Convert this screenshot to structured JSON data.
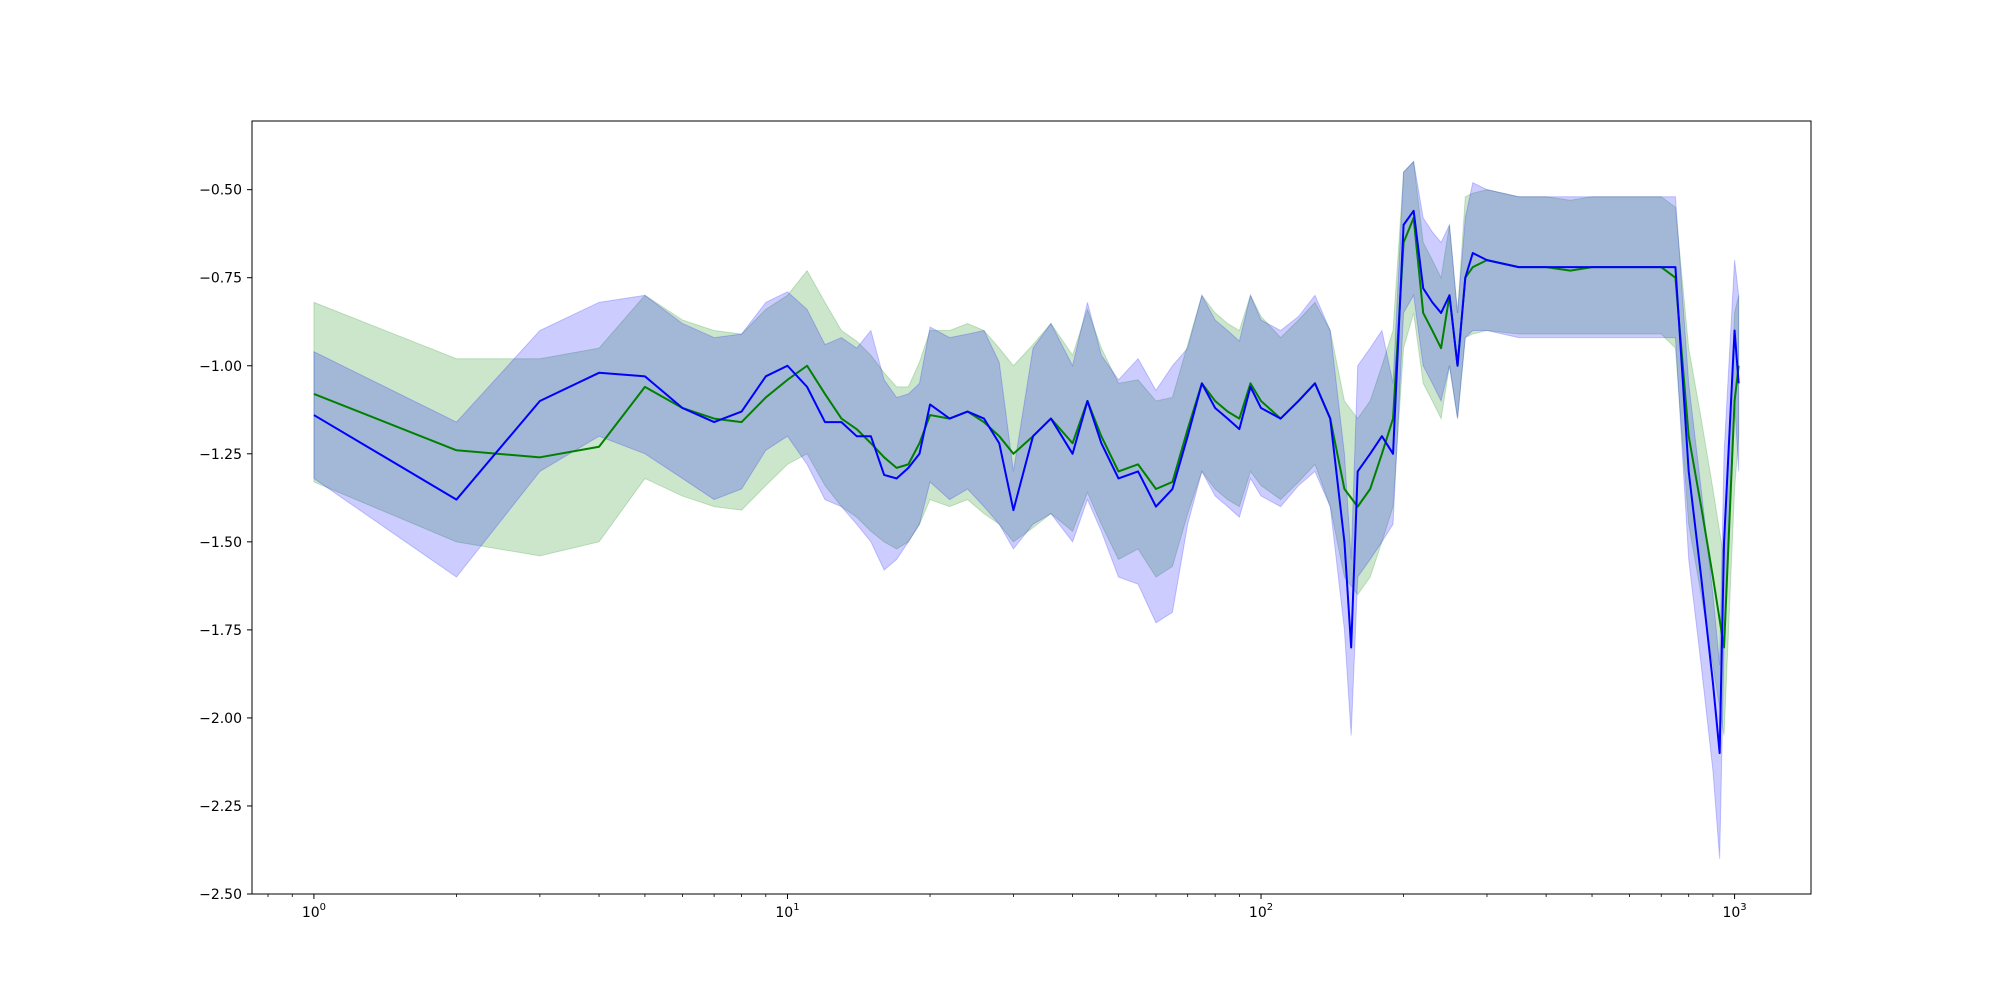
{
  "chart_data": {
    "type": "line",
    "xscale": "log",
    "xlim": [
      0.74,
      1450
    ],
    "ylim": [
      -2.5,
      -0.305
    ],
    "y_ticks": [
      -0.5,
      -0.75,
      -1.0,
      -1.25,
      -1.5,
      -1.75,
      -2.0,
      -2.25,
      -2.5
    ],
    "y_tick_labels": [
      "−0.50",
      "−0.75",
      "−1.00",
      "−1.25",
      "−1.50",
      "−1.75",
      "−2.00",
      "−2.25",
      "−2.50"
    ],
    "x_ticks": [
      1,
      10,
      100,
      1000
    ],
    "x_tick_labels": [
      {
        "base": "10",
        "exp": "0"
      },
      {
        "base": "10",
        "exp": "1"
      },
      {
        "base": "10",
        "exp": "2"
      },
      {
        "base": "10",
        "exp": "3"
      }
    ],
    "grid": false,
    "colors": {
      "green_line": "#008000",
      "green_band": "#008000",
      "blue_line": "#0000ff",
      "blue_band": "#0000ff"
    },
    "series": [
      {
        "color": "green",
        "x": [
          1,
          2,
          3,
          4,
          5,
          6,
          7,
          8,
          9,
          10,
          11,
          12,
          13,
          14,
          15,
          16,
          17,
          18,
          19,
          20,
          22,
          24,
          26,
          28,
          30,
          33,
          36,
          40,
          43,
          46,
          50,
          55,
          60,
          65,
          70,
          75,
          80,
          85,
          90,
          95,
          100,
          110,
          120,
          130,
          140,
          150,
          160,
          170,
          180,
          190,
          200,
          210,
          220,
          230,
          240,
          250,
          260,
          270,
          280,
          300,
          350,
          400,
          450,
          500,
          550,
          600,
          650,
          700,
          750,
          800,
          850,
          900,
          950,
          1000,
          1020
        ],
        "y": [
          -1.08,
          -1.24,
          -1.26,
          -1.23,
          -1.06,
          -1.12,
          -1.15,
          -1.16,
          -1.09,
          -1.04,
          -1.0,
          -1.08,
          -1.15,
          -1.18,
          -1.22,
          -1.26,
          -1.29,
          -1.28,
          -1.22,
          -1.14,
          -1.15,
          -1.13,
          -1.16,
          -1.2,
          -1.25,
          -1.2,
          -1.15,
          -1.22,
          -1.1,
          -1.2,
          -1.3,
          -1.28,
          -1.35,
          -1.33,
          -1.18,
          -1.05,
          -1.1,
          -1.13,
          -1.15,
          -1.05,
          -1.1,
          -1.15,
          -1.1,
          -1.05,
          -1.15,
          -1.35,
          -1.4,
          -1.35,
          -1.25,
          -1.15,
          -0.65,
          -0.58,
          -0.85,
          -0.9,
          -0.95,
          -0.8,
          -1.0,
          -0.75,
          -0.72,
          -0.7,
          -0.72,
          -0.72,
          -0.73,
          -0.72,
          -0.72,
          -0.72,
          -0.72,
          -0.72,
          -0.75,
          -1.2,
          -1.4,
          -1.6,
          -1.8,
          -1.1,
          -1.0
        ],
        "lower": [
          -1.33,
          -1.5,
          -1.54,
          -1.5,
          -1.32,
          -1.37,
          -1.4,
          -1.41,
          -1.34,
          -1.28,
          -1.25,
          -1.34,
          -1.4,
          -1.43,
          -1.47,
          -1.5,
          -1.52,
          -1.5,
          -1.45,
          -1.38,
          -1.4,
          -1.38,
          -1.42,
          -1.45,
          -1.5,
          -1.46,
          -1.42,
          -1.47,
          -1.36,
          -1.45,
          -1.55,
          -1.52,
          -1.6,
          -1.57,
          -1.42,
          -1.3,
          -1.35,
          -1.38,
          -1.4,
          -1.3,
          -1.34,
          -1.38,
          -1.33,
          -1.28,
          -1.4,
          -1.6,
          -1.65,
          -1.6,
          -1.5,
          -1.4,
          -0.95,
          -0.85,
          -1.05,
          -1.1,
          -1.15,
          -1.0,
          -1.15,
          -0.92,
          -0.91,
          -0.9,
          -0.91,
          -0.91,
          -0.91,
          -0.91,
          -0.91,
          -0.91,
          -0.91,
          -0.91,
          -0.95,
          -1.45,
          -1.65,
          -1.85,
          -2.05,
          -1.35,
          -1.2
        ],
        "upper": [
          -0.82,
          -0.98,
          -0.98,
          -0.95,
          -0.8,
          -0.87,
          -0.9,
          -0.91,
          -0.84,
          -0.8,
          -0.73,
          -0.82,
          -0.9,
          -0.93,
          -0.97,
          -1.02,
          -1.06,
          -1.06,
          -0.99,
          -0.9,
          -0.9,
          -0.88,
          -0.9,
          -0.95,
          -1.0,
          -0.94,
          -0.88,
          -0.97,
          -0.84,
          -0.95,
          -1.05,
          -1.04,
          -1.1,
          -1.09,
          -0.94,
          -0.8,
          -0.85,
          -0.88,
          -0.9,
          -0.8,
          -0.86,
          -0.92,
          -0.87,
          -0.82,
          -0.9,
          -1.1,
          -1.15,
          -1.1,
          -1.0,
          -0.9,
          -0.45,
          -0.42,
          -0.65,
          -0.7,
          -0.75,
          -0.6,
          -0.85,
          -0.52,
          -0.51,
          -0.5,
          -0.52,
          -0.52,
          -0.53,
          -0.52,
          -0.52,
          -0.52,
          -0.52,
          -0.52,
          -0.55,
          -0.95,
          -1.15,
          -1.35,
          -1.55,
          -0.85,
          -0.8
        ]
      },
      {
        "color": "blue",
        "x": [
          1,
          2,
          3,
          4,
          5,
          6,
          7,
          8,
          9,
          10,
          11,
          12,
          13,
          14,
          15,
          16,
          17,
          18,
          19,
          20,
          22,
          24,
          26,
          28,
          30,
          33,
          36,
          40,
          43,
          46,
          50,
          55,
          60,
          65,
          70,
          75,
          80,
          85,
          90,
          95,
          100,
          110,
          120,
          130,
          140,
          150,
          155,
          160,
          170,
          180,
          190,
          200,
          210,
          220,
          230,
          240,
          250,
          260,
          270,
          280,
          300,
          350,
          400,
          450,
          500,
          550,
          600,
          650,
          700,
          750,
          800,
          850,
          900,
          930,
          950,
          1000,
          1020
        ],
        "y": [
          -1.14,
          -1.38,
          -1.1,
          -1.02,
          -1.03,
          -1.12,
          -1.16,
          -1.13,
          -1.03,
          -1.0,
          -1.06,
          -1.16,
          -1.16,
          -1.2,
          -1.2,
          -1.31,
          -1.32,
          -1.29,
          -1.25,
          -1.11,
          -1.15,
          -1.13,
          -1.15,
          -1.22,
          -1.41,
          -1.2,
          -1.15,
          -1.25,
          -1.1,
          -1.22,
          -1.32,
          -1.3,
          -1.4,
          -1.35,
          -1.2,
          -1.05,
          -1.12,
          -1.15,
          -1.18,
          -1.06,
          -1.12,
          -1.15,
          -1.1,
          -1.05,
          -1.15,
          -1.5,
          -1.8,
          -1.3,
          -1.25,
          -1.2,
          -1.25,
          -0.6,
          -0.56,
          -0.78,
          -0.82,
          -0.85,
          -0.8,
          -1.0,
          -0.75,
          -0.68,
          -0.7,
          -0.72,
          -0.72,
          -0.72,
          -0.72,
          -0.72,
          -0.72,
          -0.72,
          -0.72,
          -0.72,
          -1.3,
          -1.6,
          -1.9,
          -2.1,
          -1.5,
          -0.9,
          -1.05
        ],
        "lower": [
          -1.32,
          -1.6,
          -1.3,
          -1.2,
          -1.25,
          -1.32,
          -1.38,
          -1.35,
          -1.24,
          -1.2,
          -1.28,
          -1.38,
          -1.4,
          -1.45,
          -1.5,
          -1.58,
          -1.55,
          -1.5,
          -1.45,
          -1.33,
          -1.38,
          -1.35,
          -1.4,
          -1.45,
          -1.52,
          -1.45,
          -1.42,
          -1.5,
          -1.38,
          -1.47,
          -1.6,
          -1.62,
          -1.73,
          -1.7,
          -1.45,
          -1.3,
          -1.37,
          -1.4,
          -1.43,
          -1.32,
          -1.37,
          -1.4,
          -1.34,
          -1.3,
          -1.4,
          -1.75,
          -2.05,
          -1.6,
          -1.55,
          -1.5,
          -1.45,
          -0.85,
          -0.8,
          -1.0,
          -1.05,
          -1.1,
          -1.0,
          -1.15,
          -0.92,
          -0.9,
          -0.9,
          -0.92,
          -0.92,
          -0.92,
          -0.92,
          -0.92,
          -0.92,
          -0.92,
          -0.92,
          -0.92,
          -1.55,
          -1.85,
          -2.15,
          -2.4,
          -1.8,
          -1.1,
          -1.3
        ],
        "upper": [
          -0.96,
          -1.16,
          -0.9,
          -0.82,
          -0.8,
          -0.88,
          -0.92,
          -0.91,
          -0.82,
          -0.79,
          -0.84,
          -0.94,
          -0.92,
          -0.95,
          -0.9,
          -1.04,
          -1.09,
          -1.08,
          -1.05,
          -0.89,
          -0.92,
          -0.91,
          -0.9,
          -0.99,
          -1.3,
          -0.95,
          -0.88,
          -1.0,
          -0.82,
          -0.97,
          -1.04,
          -0.98,
          -1.07,
          -1.0,
          -0.95,
          -0.8,
          -0.87,
          -0.9,
          -0.93,
          -0.8,
          -0.87,
          -0.9,
          -0.86,
          -0.8,
          -0.9,
          -1.25,
          -1.55,
          -1.0,
          -0.95,
          -0.9,
          -1.05,
          -0.45,
          -0.42,
          -0.58,
          -0.62,
          -0.65,
          -0.6,
          -0.85,
          -0.58,
          -0.48,
          -0.5,
          -0.52,
          -0.52,
          -0.52,
          -0.52,
          -0.52,
          -0.52,
          -0.52,
          -0.52,
          -0.52,
          -1.05,
          -1.35,
          -1.65,
          -1.85,
          -1.25,
          -0.7,
          -0.8
        ]
      }
    ]
  }
}
